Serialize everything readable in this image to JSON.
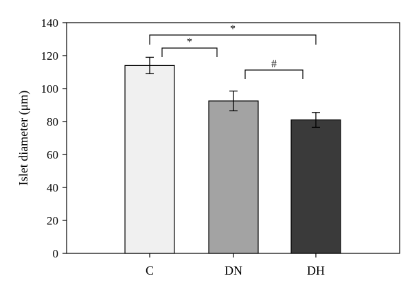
{
  "chart_data": {
    "type": "bar",
    "title": "",
    "xlabel": "",
    "ylabel": "Islet diameter (μm)",
    "ylim": [
      0,
      140
    ],
    "yticks": [
      0,
      20,
      40,
      60,
      80,
      100,
      120,
      140
    ],
    "categories": [
      "C",
      "DN",
      "DH"
    ],
    "values": [
      114,
      92.5,
      81
    ],
    "errors": [
      5,
      6,
      4.5
    ],
    "bar_colors": [
      "#f0f0f0",
      "#a3a3a3",
      "#3a3a3a"
    ],
    "grid": false,
    "legend": "none",
    "significance": [
      {
        "from": 0,
        "to": 1,
        "label": "*"
      },
      {
        "from": 0,
        "to": 2,
        "label": "*"
      },
      {
        "from": 1,
        "to": 2,
        "label": "#"
      }
    ]
  }
}
